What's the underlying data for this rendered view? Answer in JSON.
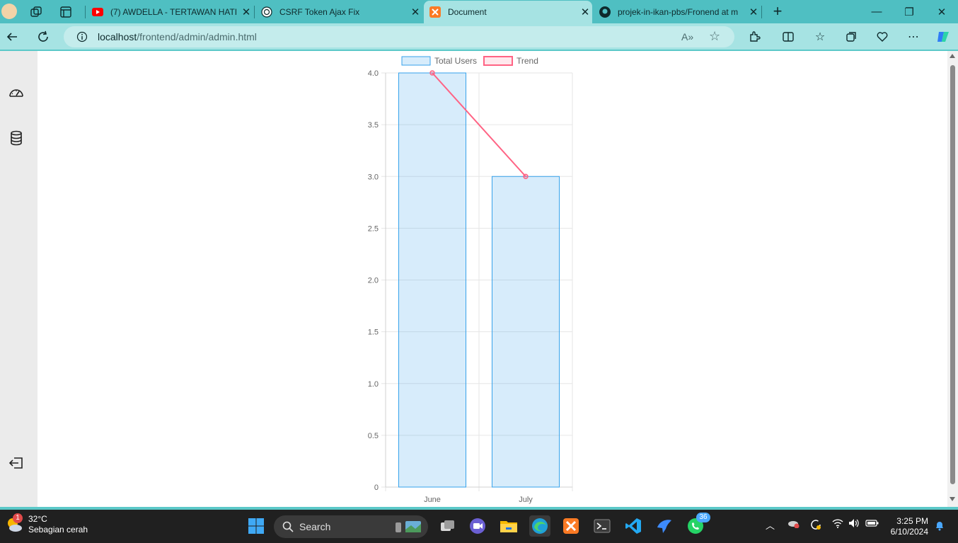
{
  "browser": {
    "tabs": [
      {
        "label": "(7) AWDELLA - TERTAWAN HATI (",
        "icon": "youtube-icon"
      },
      {
        "label": "CSRF Token Ajax Fix",
        "icon": "chatgpt-icon"
      },
      {
        "label": "Document",
        "icon": "xampp-icon",
        "active": true
      },
      {
        "label": "projek-in-ikan-pbs/Fronend at m",
        "icon": "github-icon"
      }
    ],
    "url_host": "localhost",
    "url_path": "/frontend/admin/admin.html"
  },
  "chart_data": {
    "type": "bar",
    "categories": [
      "June",
      "July"
    ],
    "series": [
      {
        "name": "Total Users",
        "type": "bar",
        "values": [
          4,
          3
        ],
        "color": "#36a2eb"
      },
      {
        "name": "Trend",
        "type": "line",
        "values": [
          4,
          3
        ],
        "color": "#ff6384"
      }
    ],
    "ylim": [
      0,
      4
    ],
    "yticks": [
      "0",
      "0.5",
      "1.0",
      "1.5",
      "2.0",
      "2.5",
      "3.0",
      "3.5",
      "4.0"
    ],
    "legend": "top",
    "grid": true
  },
  "taskbar": {
    "weather_temp": "32°C",
    "weather_desc": "Sebagian cerah",
    "weather_badge": "1",
    "search_label": "Search",
    "whatsapp_badge": "36",
    "time": "3:25 PM",
    "date": "6/10/2024"
  }
}
